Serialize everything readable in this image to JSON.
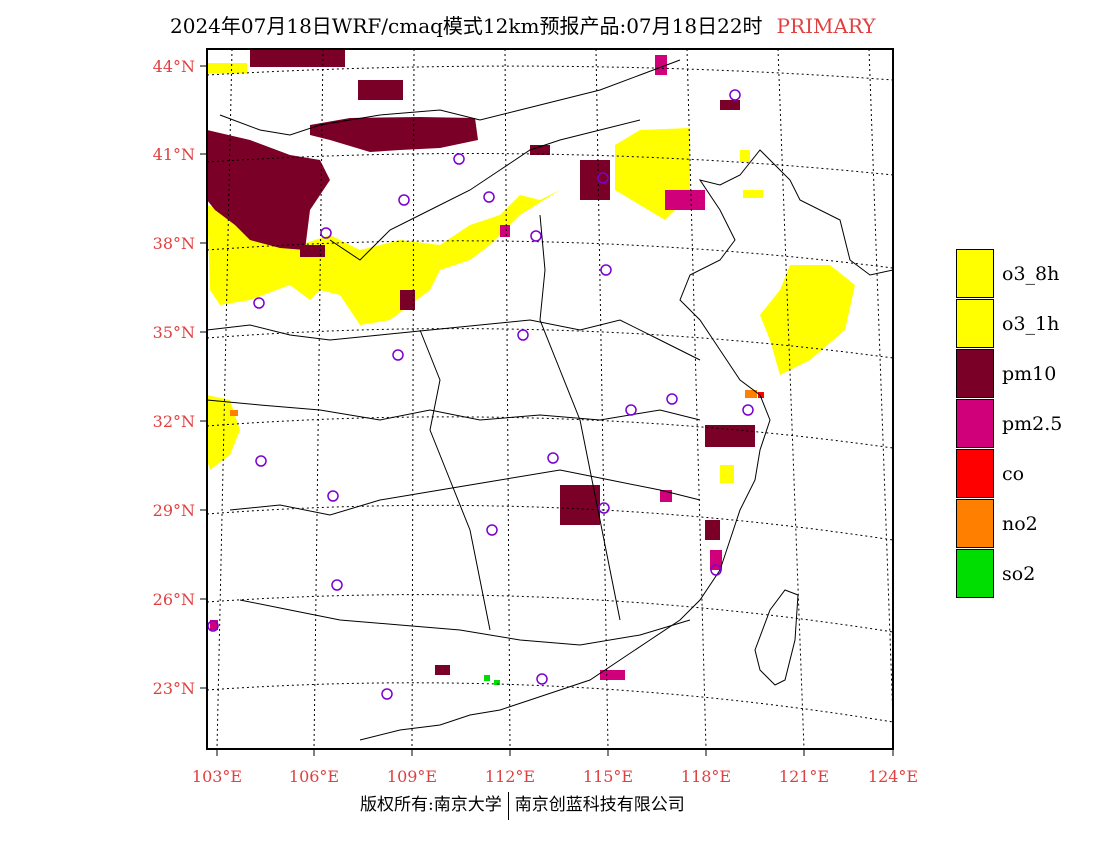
{
  "title": {
    "main": "2024年07月18日WRF/cmaq模式12km预报产品:07月18日22时",
    "tag": "PRIMARY"
  },
  "axes": {
    "lat_labels": [
      "44°N",
      "41°N",
      "38°N",
      "35°N",
      "32°N",
      "29°N",
      "26°N",
      "23°N"
    ],
    "lon_labels": [
      "103°E",
      "106°E",
      "109°E",
      "112°E",
      "115°E",
      "118°E",
      "121°E",
      "124°E"
    ]
  },
  "legend": [
    {
      "label": "o3_8h",
      "color": "#ffff00"
    },
    {
      "label": "o3_1h",
      "color": "#ffff00"
    },
    {
      "label": "pm10",
      "color": "#7a0028"
    },
    {
      "label": "pm2.5",
      "color": "#d0007a"
    },
    {
      "label": "co",
      "color": "#ff0000"
    },
    {
      "label": "no2",
      "color": "#ff8000"
    },
    {
      "label": "so2",
      "color": "#00dd00"
    }
  ],
  "footer": {
    "left": "版权所有:南京大学",
    "right": "南京创蓝科技有限公司"
  },
  "colors": {
    "label_red": "#e04040",
    "station_marker": "#7b00d0"
  }
}
